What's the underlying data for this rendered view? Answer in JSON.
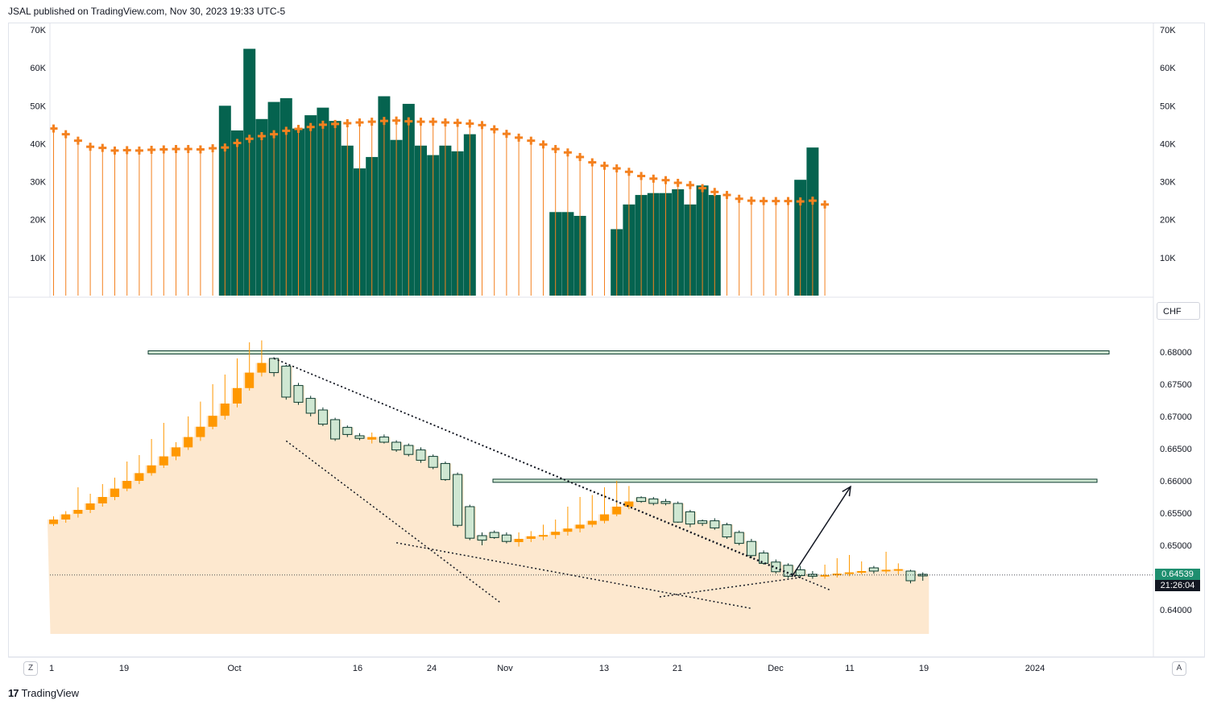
{
  "header": {
    "publisher": "JSAL published on TradingView.com, Nov 30, 2023 19:33 UTC-5"
  },
  "footer": {
    "brand": "TradingView",
    "logo_icon": "tradingview-logo-icon"
  },
  "controls": {
    "zoom_label": "Z",
    "auto_label": "A",
    "currency": "CHF"
  },
  "colors": {
    "volume_bar": "#05634f",
    "volume_ma": "#f4811f",
    "candle_up": "#ff9800",
    "candle_down_fill": "#cfe7d2",
    "candle_down_border": "#0c3b2e",
    "area_fill": "#fde8cf",
    "zone_fill": "#cfe7d2",
    "price_tag_bg": "#1e8e6f"
  },
  "price_labels": {
    "last_price": "0.64539",
    "countdown": "21:26:04"
  },
  "chart_data": [
    {
      "type": "bar",
      "title": "",
      "yticks": [
        "10K",
        "20K",
        "30K",
        "40K",
        "50K",
        "60K",
        "70K"
      ],
      "ylim": [
        0,
        70000
      ],
      "series": [
        {
          "values": [
            0,
            0,
            0,
            0,
            0,
            0,
            0,
            0,
            0,
            0,
            0,
            0,
            0,
            0,
            50000,
            43500,
            65000,
            46500,
            51000,
            52000,
            44000,
            47500,
            49500,
            46000,
            39500,
            33500,
            36500,
            52500,
            41000,
            50500,
            39500,
            37000,
            39500,
            38000,
            42500,
            0,
            0,
            0,
            0,
            0,
            0,
            22000,
            22000,
            21000,
            0,
            0,
            17500,
            24000,
            26500,
            27000,
            27000,
            28000,
            24000,
            29000,
            26500,
            0,
            0,
            0,
            0,
            0,
            0,
            30500,
            39000,
            0
          ]
        },
        {
          "values": [
            44000,
            42500,
            40800,
            39200,
            38900,
            38200,
            38300,
            38200,
            38400,
            38500,
            38600,
            38600,
            38500,
            38800,
            39000,
            40200,
            41300,
            42000,
            42500,
            43400,
            43900,
            44400,
            45000,
            45200,
            45400,
            45600,
            45800,
            46000,
            46100,
            45900,
            45800,
            45800,
            45600,
            45500,
            45300,
            44900,
            43800,
            42600,
            41600,
            40800,
            39800,
            38600,
            37700,
            36500,
            35100,
            34200,
            33500,
            32600,
            31500,
            30800,
            30400,
            29700,
            29100,
            28300,
            27300,
            26500,
            25500,
            25000,
            24900,
            24900,
            24900,
            24800,
            25000,
            24000
          ]
        }
      ]
    },
    {
      "type": "candlestick",
      "title": "",
      "yticks": [
        "0.64000",
        "0.64500",
        "0.65000",
        "0.65500",
        "0.66000",
        "0.66500",
        "0.67000",
        "0.67500",
        "0.68000"
      ],
      "xticks": [
        "1",
        "19",
        "Oct",
        "16",
        "24",
        "Nov",
        "13",
        "21",
        "Dec",
        "11",
        "19",
        "2024"
      ],
      "ylim": [
        0.63627,
        0.68298
      ],
      "ohlc": [
        [
          0.6533,
          0.6545,
          0.653,
          0.654
        ],
        [
          0.654,
          0.6553,
          0.6535,
          0.6548
        ],
        [
          0.6549,
          0.659,
          0.6543,
          0.6555
        ],
        [
          0.6555,
          0.658,
          0.655,
          0.6565
        ],
        [
          0.6565,
          0.6595,
          0.656,
          0.6575
        ],
        [
          0.6575,
          0.6605,
          0.657,
          0.6588
        ],
        [
          0.6588,
          0.663,
          0.6584,
          0.66
        ],
        [
          0.66,
          0.664,
          0.6595,
          0.6612
        ],
        [
          0.6612,
          0.6665,
          0.6608,
          0.6624
        ],
        [
          0.6624,
          0.669,
          0.662,
          0.6638
        ],
        [
          0.6638,
          0.666,
          0.6632,
          0.6652
        ],
        [
          0.6652,
          0.67,
          0.6648,
          0.6668
        ],
        [
          0.6668,
          0.6723,
          0.6662,
          0.6684
        ],
        [
          0.6684,
          0.675,
          0.668,
          0.6701
        ],
        [
          0.6701,
          0.6765,
          0.6695,
          0.672
        ],
        [
          0.672,
          0.679,
          0.6714,
          0.6744
        ],
        [
          0.6744,
          0.6815,
          0.674,
          0.6768
        ],
        [
          0.6768,
          0.6818,
          0.6762,
          0.6783
        ],
        [
          0.679,
          0.6792,
          0.6762,
          0.6768
        ],
        [
          0.6778,
          0.678,
          0.6726,
          0.673
        ],
        [
          0.6748,
          0.6752,
          0.6718,
          0.6722
        ],
        [
          0.6728,
          0.6732,
          0.67,
          0.6705
        ],
        [
          0.671,
          0.6714,
          0.6685,
          0.6688
        ],
        [
          0.6695,
          0.6698,
          0.6662,
          0.6665
        ],
        [
          0.6683,
          0.6686,
          0.6668,
          0.6672
        ],
        [
          0.667,
          0.6674,
          0.6663,
          0.6666
        ],
        [
          0.6664,
          0.6675,
          0.6658,
          0.6668
        ],
        [
          0.6668,
          0.6672,
          0.6658,
          0.666
        ],
        [
          0.666,
          0.6663,
          0.6645,
          0.6648
        ],
        [
          0.6655,
          0.6658,
          0.6638,
          0.6641
        ],
        [
          0.6648,
          0.6652,
          0.6628,
          0.6632
        ],
        [
          0.6638,
          0.6641,
          0.6618,
          0.6621
        ],
        [
          0.6627,
          0.663,
          0.66,
          0.6602
        ],
        [
          0.661,
          0.6613,
          0.6528,
          0.6531
        ],
        [
          0.656,
          0.6563,
          0.6508,
          0.6511
        ],
        [
          0.6515,
          0.652,
          0.65,
          0.6508
        ],
        [
          0.652,
          0.6523,
          0.651,
          0.6512
        ],
        [
          0.6516,
          0.652,
          0.6503,
          0.6506
        ],
        [
          0.6505,
          0.652,
          0.6498,
          0.651
        ],
        [
          0.651,
          0.6522,
          0.6505,
          0.6514
        ],
        [
          0.6514,
          0.6532,
          0.6508,
          0.6516
        ],
        [
          0.6516,
          0.654,
          0.651,
          0.6521
        ],
        [
          0.6521,
          0.656,
          0.6515,
          0.6526
        ],
        [
          0.6526,
          0.6575,
          0.652,
          0.6532
        ],
        [
          0.6532,
          0.6578,
          0.6528,
          0.6538
        ],
        [
          0.6538,
          0.659,
          0.6534,
          0.6548
        ],
        [
          0.6548,
          0.66,
          0.6545,
          0.656
        ],
        [
          0.656,
          0.6592,
          0.6556,
          0.6568
        ],
        [
          0.6574,
          0.6576,
          0.6566,
          0.6568
        ],
        [
          0.6572,
          0.6575,
          0.6562,
          0.6565
        ],
        [
          0.6568,
          0.6572,
          0.6562,
          0.6565
        ],
        [
          0.6565,
          0.6568,
          0.6535,
          0.6536
        ],
        [
          0.6552,
          0.6555,
          0.6528,
          0.6533
        ],
        [
          0.6538,
          0.654,
          0.653,
          0.6534
        ],
        [
          0.6538,
          0.6542,
          0.6524,
          0.6527
        ],
        [
          0.6532,
          0.6535,
          0.651,
          0.6513
        ],
        [
          0.652,
          0.6523,
          0.65,
          0.6503
        ],
        [
          0.6506,
          0.651,
          0.648,
          0.6484
        ],
        [
          0.6488,
          0.6492,
          0.647,
          0.6472
        ],
        [
          0.6474,
          0.6478,
          0.6456,
          0.6459
        ],
        [
          0.6469,
          0.6472,
          0.6449,
          0.6452
        ],
        [
          0.6462,
          0.6468,
          0.645,
          0.6453
        ],
        [
          0.6455,
          0.646,
          0.6448,
          0.6452
        ],
        [
          0.6453,
          0.647,
          0.6448,
          0.6454
        ],
        [
          0.6454,
          0.648,
          0.645,
          0.6456
        ],
        [
          0.6456,
          0.6485,
          0.6452,
          0.6458
        ],
        [
          0.6458,
          0.6475,
          0.6455,
          0.646
        ],
        [
          0.6465,
          0.6468,
          0.6456,
          0.646
        ],
        [
          0.646,
          0.649,
          0.6456,
          0.6462
        ],
        [
          0.6462,
          0.6472,
          0.6455,
          0.6463
        ],
        [
          0.646,
          0.6462,
          0.6441,
          0.6445
        ],
        [
          0.6455,
          0.6458,
          0.6445,
          0.6454
        ]
      ],
      "resistance_zones": [
        [
          0.67969,
          0.68018
        ],
        [
          0.65977,
          0.66026
        ]
      ],
      "trendlines": [
        [
          [
            18,
            0.679
          ],
          [
            63.5,
            0.643
          ]
        ],
        [
          [
            18,
            0.679
          ],
          [
            60.8,
            0.645
          ]
        ],
        [
          [
            19,
            0.6662
          ],
          [
            36.5,
            0.6411
          ]
        ],
        [
          [
            28,
            0.6504
          ],
          [
            57,
            0.6402
          ]
        ],
        [
          [
            49.5,
            0.642
          ],
          [
            61,
            0.645
          ]
        ]
      ],
      "arrow": [
        [
          60.3,
          0.6451
        ],
        [
          65.1,
          0.6591
        ]
      ]
    }
  ]
}
